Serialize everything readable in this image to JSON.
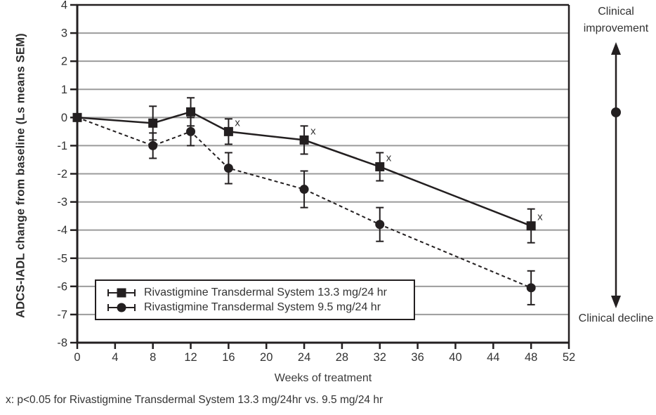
{
  "chart_data": {
    "type": "line",
    "title": "",
    "xlabel": "Weeks of treatment",
    "ylabel": "ADCS-IADL change from baseline (Ls means SEM)",
    "xlim": [
      0,
      52
    ],
    "ylim": [
      -8,
      4
    ],
    "x_ticks": [
      0,
      4,
      8,
      12,
      16,
      20,
      24,
      28,
      32,
      36,
      40,
      44,
      48,
      52
    ],
    "y_ticks": [
      4,
      3,
      2,
      1,
      0,
      -1,
      -2,
      -3,
      -4,
      -5,
      -6,
      -7,
      -8
    ],
    "grid": "horizontal gray lines at each integer",
    "legend_position": "inside lower-left box",
    "x": [
      0,
      8,
      12,
      16,
      24,
      32,
      48
    ],
    "series": [
      {
        "name": "Rivastigmine Transdermal System 13.3 mg/24 hr",
        "marker": "square",
        "line_style": "solid",
        "values": [
          0,
          -0.2,
          0.2,
          -0.5,
          -0.8,
          -1.75,
          -3.85
        ],
        "sem": [
          0,
          0.6,
          0.5,
          0.45,
          0.5,
          0.5,
          0.6
        ],
        "significant_weeks": [
          16,
          24,
          32,
          48
        ]
      },
      {
        "name": "Rivastigmine Transdermal System 9.5 mg/24 hr",
        "marker": "circle",
        "line_style": "dashed",
        "values": [
          0,
          -1.0,
          -0.5,
          -1.8,
          -2.55,
          -3.8,
          -6.05
        ],
        "sem": [
          0,
          0.45,
          0.5,
          0.55,
          0.65,
          0.6,
          0.6
        ],
        "significant_weeks": []
      }
    ],
    "significance_symbol": "x"
  },
  "annotations": {
    "clinical_improvement": "Clinical improvement",
    "clinical_decline": "Clinical decline",
    "footnote": "x: p<0.05 for Rivastigmine Transdermal System 13.3 mg/24hr vs. 9.5 mg/24 hr"
  },
  "colors": {
    "ink": "#231f20",
    "grid": "#9b9b9b",
    "text": "#333333",
    "background": "#ffffff"
  }
}
